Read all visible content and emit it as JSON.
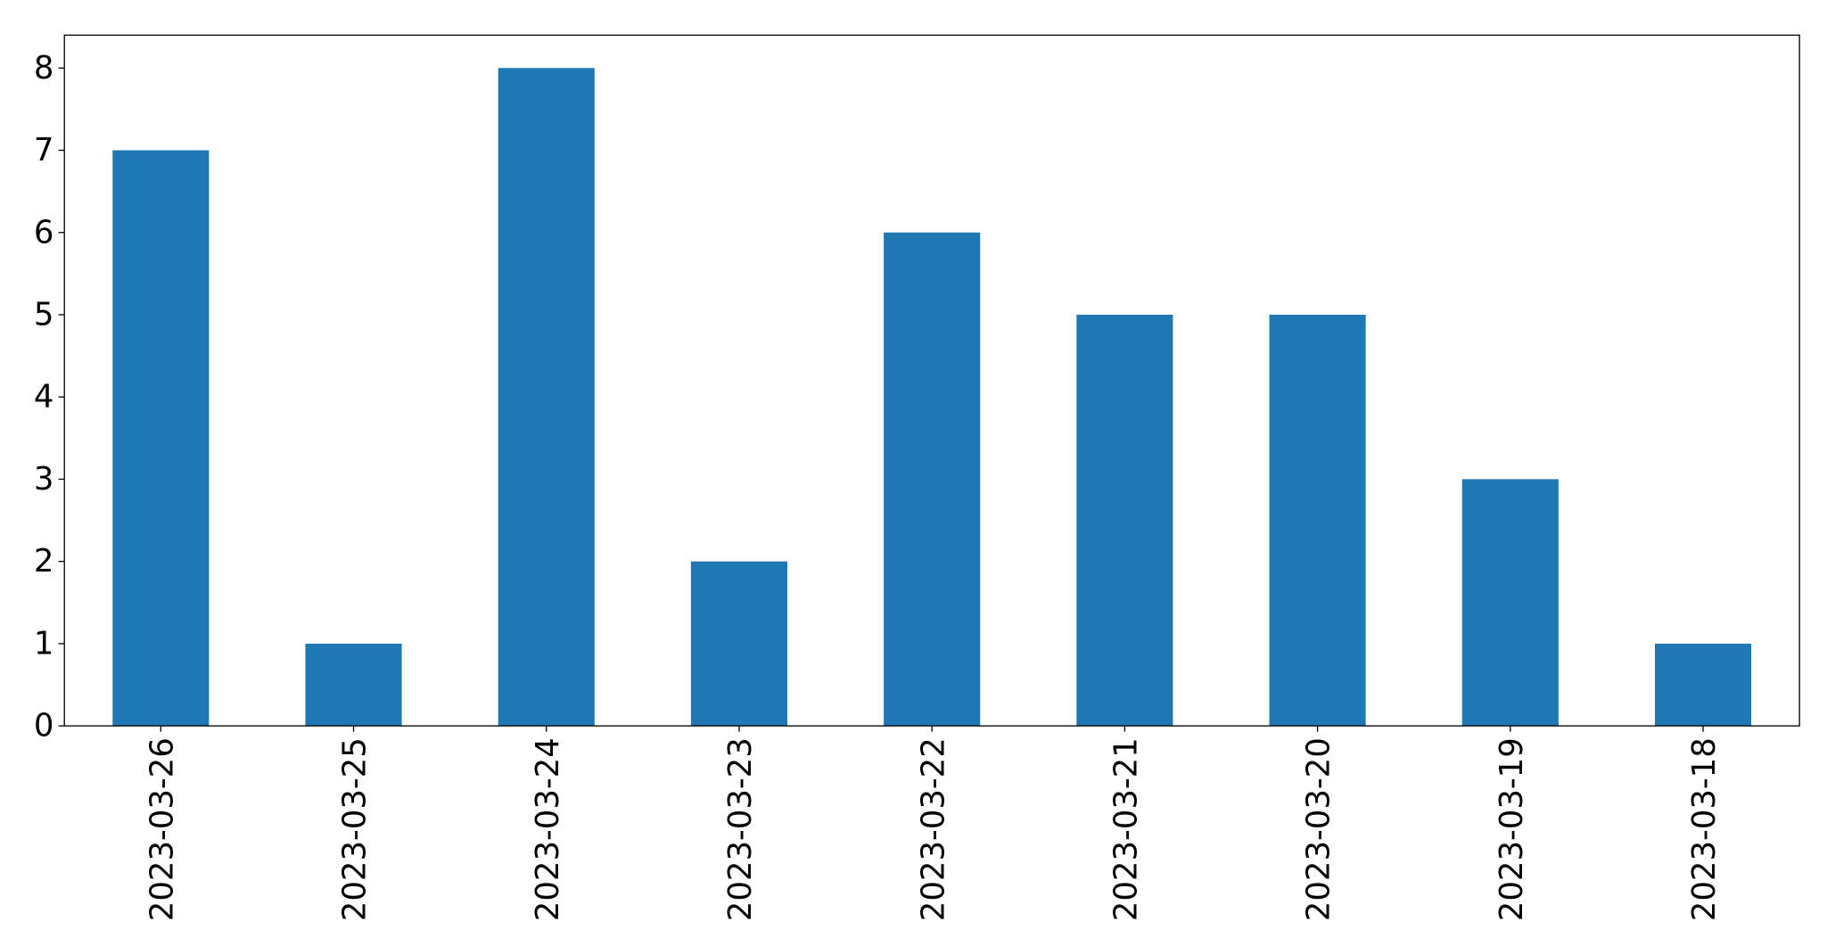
{
  "chart_data": {
    "type": "bar",
    "title": "",
    "xlabel": "",
    "ylabel": "",
    "categories": [
      "2023-03-26",
      "2023-03-25",
      "2023-03-24",
      "2023-03-23",
      "2023-03-22",
      "2023-03-21",
      "2023-03-20",
      "2023-03-19",
      "2023-03-18"
    ],
    "values": [
      7,
      1,
      8,
      2,
      6,
      5,
      5,
      3,
      1
    ],
    "ylim": [
      0,
      8.4
    ],
    "yticks": [
      0,
      1,
      2,
      3,
      4,
      5,
      6,
      7,
      8
    ],
    "grid": false,
    "bar_color": "#1f77b4"
  }
}
